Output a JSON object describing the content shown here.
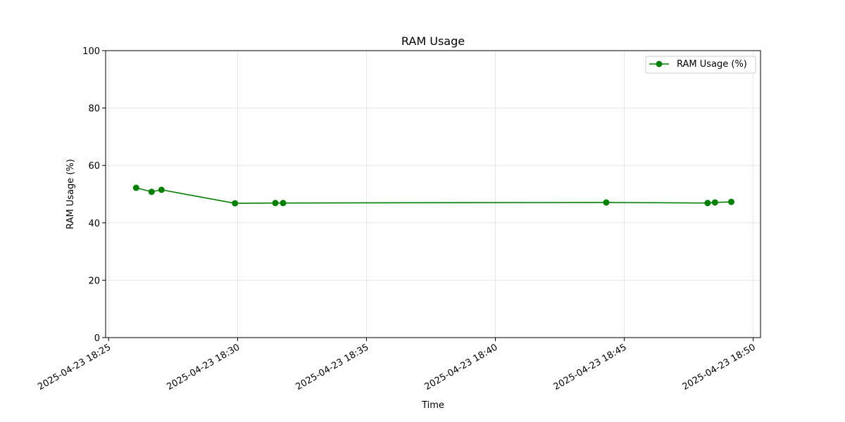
{
  "chart_data": {
    "type": "line",
    "title": "RAM Usage",
    "xlabel": "Time",
    "ylabel": "RAM Usage (%)",
    "ylim": [
      0,
      100
    ],
    "xlim": [
      "2025-04-23 18:24:53",
      "2025-04-23 18:50:17"
    ],
    "yticks": [
      0,
      20,
      40,
      60,
      80,
      100
    ],
    "xticks": [
      "2025-04-23 18:25",
      "2025-04-23 18:30",
      "2025-04-23 18:35",
      "2025-04-23 18:40",
      "2025-04-23 18:45",
      "2025-04-23 18:50"
    ],
    "grid": true,
    "legend_position": "top-right",
    "series": [
      {
        "name": "RAM Usage (%)",
        "color": "#008000",
        "marker": "circle",
        "x": [
          "2025-04-23 18:26:04",
          "2025-04-23 18:26:40",
          "2025-04-23 18:27:03",
          "2025-04-23 18:29:54",
          "2025-04-23 18:31:28",
          "2025-04-23 18:31:46",
          "2025-04-23 18:44:18",
          "2025-04-23 18:48:14",
          "2025-04-23 18:48:31",
          "2025-04-23 18:49:09"
        ],
        "values": [
          52.2,
          50.8,
          51.5,
          46.8,
          46.9,
          46.9,
          47.1,
          46.9,
          47.1,
          47.3
        ]
      }
    ]
  }
}
